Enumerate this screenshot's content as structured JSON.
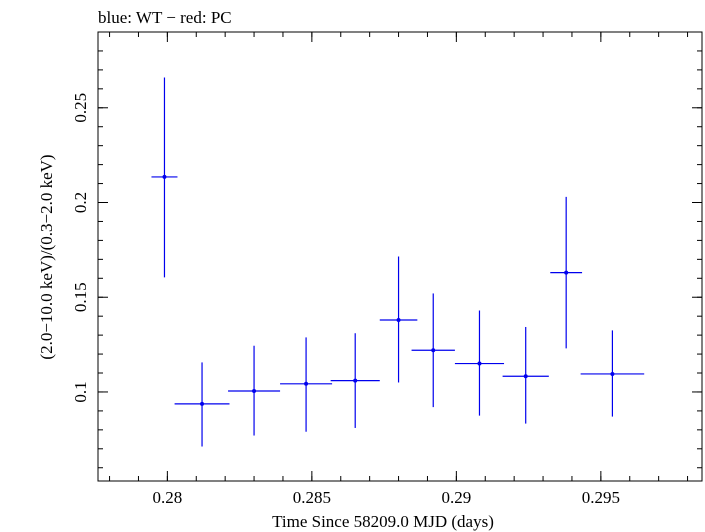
{
  "chart_data": {
    "type": "scatter",
    "title": "blue: WT − red: PC",
    "xlabel": "Time Since 58209.0 MJD (days)",
    "ylabel": "(2.0−10.0 keV)/(0.3−2.0 keV)",
    "xlim": [
      0.2776,
      0.2985
    ],
    "ylim": [
      0.053,
      0.29
    ],
    "x_ticks": [
      {
        "value": 0.28,
        "label": "0.28"
      },
      {
        "value": 0.285,
        "label": "0.285"
      },
      {
        "value": 0.29,
        "label": "0.29"
      },
      {
        "value": 0.295,
        "label": "0.295"
      }
    ],
    "y_ticks": [
      {
        "value": 0.1,
        "label": "0.1"
      },
      {
        "value": 0.15,
        "label": "0.15"
      },
      {
        "value": 0.2,
        "label": "0.2"
      },
      {
        "value": 0.25,
        "label": "0.25"
      }
    ],
    "grid": false,
    "series": [
      {
        "color": "#0000ee",
        "points": [
          {
            "x": 0.2799,
            "y": 0.2135,
            "xerr": 0.00045,
            "yerr_low": 0.053,
            "yerr_high": 0.0525
          },
          {
            "x": 0.2812,
            "y": 0.0937,
            "xerr": 0.00095,
            "yerr_low": 0.0225,
            "yerr_high": 0.0219
          },
          {
            "x": 0.283,
            "y": 0.1005,
            "xerr": 0.0009,
            "yerr_low": 0.0235,
            "yerr_high": 0.0239
          },
          {
            "x": 0.2848,
            "y": 0.1043,
            "xerr": 0.0009,
            "yerr_low": 0.0253,
            "yerr_high": 0.0245
          },
          {
            "x": 0.2865,
            "y": 0.106,
            "xerr": 0.00085,
            "yerr_low": 0.025,
            "yerr_high": 0.025
          },
          {
            "x": 0.288,
            "y": 0.138,
            "xerr": 0.00065,
            "yerr_low": 0.033,
            "yerr_high": 0.0335
          },
          {
            "x": 0.2892,
            "y": 0.122,
            "xerr": 0.00075,
            "yerr_low": 0.03,
            "yerr_high": 0.03
          },
          {
            "x": 0.2908,
            "y": 0.115,
            "xerr": 0.00085,
            "yerr_low": 0.0275,
            "yerr_high": 0.028
          },
          {
            "x": 0.2924,
            "y": 0.1083,
            "xerr": 0.0008,
            "yerr_low": 0.025,
            "yerr_high": 0.026
          },
          {
            "x": 0.2938,
            "y": 0.163,
            "xerr": 0.00055,
            "yerr_low": 0.04,
            "yerr_high": 0.04
          },
          {
            "x": 0.2954,
            "y": 0.1095,
            "xerr": 0.0011,
            "yerr_low": 0.0225,
            "yerr_high": 0.023
          }
        ]
      }
    ]
  }
}
